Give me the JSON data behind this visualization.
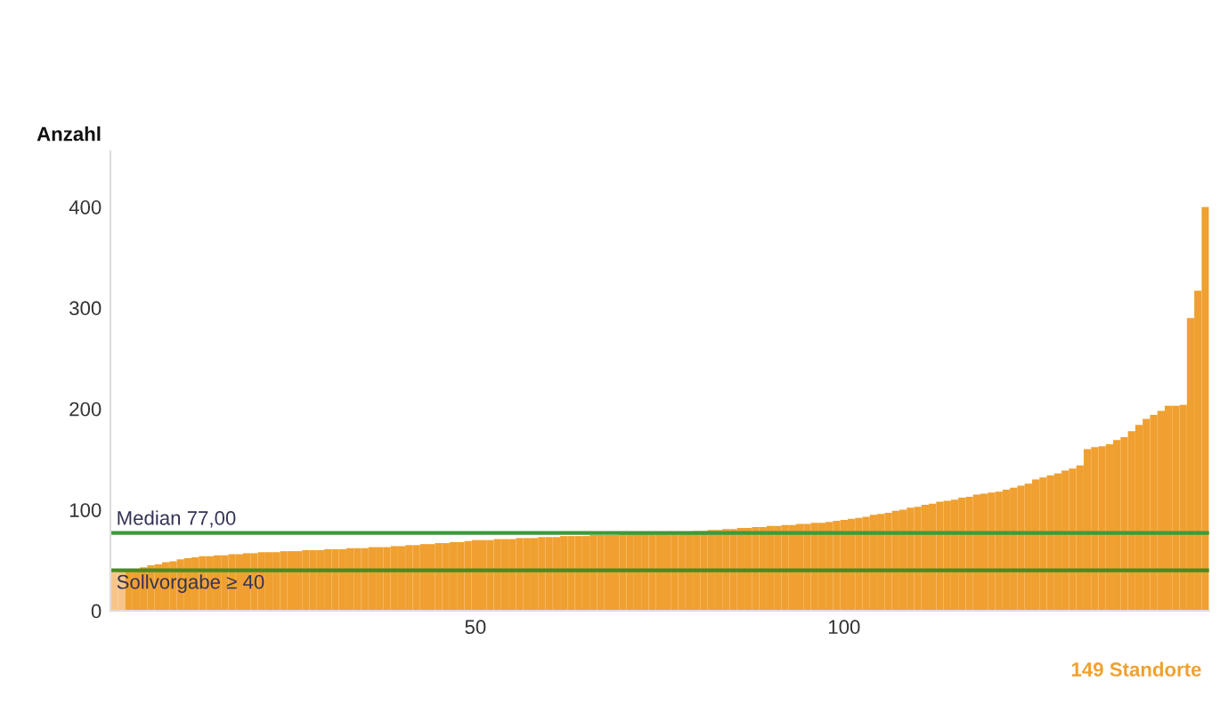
{
  "chart_data": {
    "type": "bar",
    "xlabel": "149 Standorte",
    "ylabel": "Anzahl",
    "x": [
      1,
      2,
      3,
      4,
      5,
      6,
      7,
      8,
      9,
      10,
      11,
      12,
      13,
      14,
      15,
      16,
      17,
      18,
      19,
      20,
      21,
      22,
      23,
      24,
      25,
      26,
      27,
      28,
      29,
      30,
      31,
      32,
      33,
      34,
      35,
      36,
      37,
      38,
      39,
      40,
      41,
      42,
      43,
      44,
      45,
      46,
      47,
      48,
      49,
      50,
      51,
      52,
      53,
      54,
      55,
      56,
      57,
      58,
      59,
      60,
      61,
      62,
      63,
      64,
      65,
      66,
      67,
      68,
      69,
      70,
      71,
      72,
      73,
      74,
      75,
      76,
      77,
      78,
      79,
      80,
      81,
      82,
      83,
      84,
      85,
      86,
      87,
      88,
      89,
      90,
      91,
      92,
      93,
      94,
      95,
      96,
      97,
      98,
      99,
      100,
      101,
      102,
      103,
      104,
      105,
      106,
      107,
      108,
      109,
      110,
      111,
      112,
      113,
      114,
      115,
      116,
      117,
      118,
      119,
      120,
      121,
      122,
      123,
      124,
      125,
      126,
      127,
      128,
      129,
      130,
      131,
      132,
      133,
      134,
      135,
      136,
      137,
      138,
      139,
      140,
      141,
      142,
      143,
      144,
      145,
      146,
      147,
      148,
      149
    ],
    "values": [
      38,
      39,
      40,
      41,
      43,
      45,
      46,
      48,
      49,
      51,
      52,
      53,
      54,
      54,
      55,
      55,
      56,
      56,
      57,
      57,
      58,
      58,
      58,
      59,
      59,
      59,
      60,
      60,
      60,
      61,
      61,
      61,
      62,
      62,
      62,
      63,
      63,
      63,
      64,
      64,
      65,
      65,
      66,
      66,
      67,
      67,
      68,
      68,
      69,
      70,
      70,
      70,
      71,
      71,
      71,
      72,
      72,
      72,
      73,
      73,
      73,
      74,
      74,
      74,
      74,
      75,
      75,
      75,
      75,
      76,
      76,
      76,
      76,
      77,
      77,
      77,
      78,
      78,
      78,
      79,
      79,
      80,
      80,
      81,
      81,
      82,
      82,
      83,
      83,
      84,
      84,
      85,
      85,
      86,
      86,
      87,
      87,
      88,
      89,
      90,
      91,
      92,
      93,
      95,
      96,
      97,
      99,
      100,
      102,
      103,
      105,
      106,
      108,
      109,
      110,
      112,
      113,
      115,
      116,
      117,
      118,
      120,
      122,
      124,
      126,
      130,
      132,
      134,
      136,
      139,
      141,
      144,
      160,
      162,
      163,
      165,
      169,
      172,
      178,
      184,
      190,
      194,
      198,
      203,
      203,
      204,
      290,
      317,
      400
    ],
    "colors": [
      "#f7c58a",
      "#f7c58a",
      "#f0a030",
      "#f0a030",
      "#f0a030",
      "#f0a030",
      "#f0a030",
      "#f0a030",
      "#f0a030",
      "#f0a030",
      "#f0a030",
      "#f0a030",
      "#f0a030",
      "#f0a030",
      "#f0a030",
      "#f0a030",
      "#f0a030",
      "#f0a030",
      "#f0a030",
      "#f0a030",
      "#f0a030",
      "#f0a030",
      "#f0a030",
      "#f0a030",
      "#f0a030",
      "#f0a030",
      "#f0a030",
      "#f0a030",
      "#f0a030",
      "#f0a030",
      "#f0a030",
      "#f0a030",
      "#f0a030",
      "#f0a030",
      "#f0a030",
      "#f0a030",
      "#f0a030",
      "#f0a030",
      "#f0a030",
      "#f0a030",
      "#f0a030",
      "#f0a030",
      "#f0a030",
      "#f0a030",
      "#f0a030",
      "#f0a030",
      "#f0a030",
      "#f0a030",
      "#f0a030",
      "#f0a030",
      "#f0a030",
      "#f0a030",
      "#f0a030",
      "#f0a030",
      "#f0a030",
      "#f0a030",
      "#f0a030",
      "#f0a030",
      "#f0a030",
      "#f0a030",
      "#f0a030",
      "#f0a030",
      "#f0a030",
      "#f0a030",
      "#f0a030",
      "#f0a030",
      "#f0a030",
      "#f0a030",
      "#f0a030",
      "#f0a030",
      "#f0a030",
      "#f0a030",
      "#f0a030",
      "#f0a030",
      "#f0a030",
      "#f0a030",
      "#f0a030",
      "#f0a030",
      "#f0a030",
      "#f0a030",
      "#f0a030",
      "#f0a030",
      "#f0a030",
      "#f0a030",
      "#f0a030",
      "#f0a030",
      "#f0a030",
      "#f0a030",
      "#f0a030",
      "#f0a030",
      "#f0a030",
      "#f0a030",
      "#f0a030",
      "#f0a030",
      "#f0a030",
      "#f0a030",
      "#f0a030",
      "#f0a030",
      "#f0a030",
      "#f0a030",
      "#f0a030",
      "#f0a030",
      "#f0a030",
      "#f0a030",
      "#f0a030",
      "#f0a030",
      "#f0a030",
      "#f0a030",
      "#f0a030",
      "#f0a030",
      "#f0a030",
      "#f0a030",
      "#f0a030",
      "#f0a030",
      "#f0a030",
      "#f0a030",
      "#f0a030",
      "#f0a030",
      "#f0a030",
      "#f0a030",
      "#f0a030",
      "#f0a030",
      "#f0a030",
      "#f0a030",
      "#f0a030",
      "#f0a030",
      "#f0a030",
      "#f0a030",
      "#f0a030",
      "#f0a030",
      "#f0a030",
      "#f0a030",
      "#f0a030",
      "#f0a030",
      "#f0a030",
      "#f0a030",
      "#f0a030",
      "#f0a030",
      "#f0a030",
      "#f0a030",
      "#f0a030",
      "#f0a030",
      "#f0a030",
      "#f0a030",
      "#f0a030",
      "#f0a030",
      "#f0a030",
      "#f0a030",
      "#f0a030"
    ],
    "xlim": [
      0.5,
      149.5
    ],
    "xticks": [
      50,
      100
    ],
    "ylim": [
      0,
      455
    ],
    "yticks": [
      0,
      100,
      200,
      300,
      400
    ],
    "grid": false,
    "ref_lines": [
      {
        "axis": "y",
        "value": 77,
        "label": "Median 77,00",
        "color": "#3c9a3c"
      },
      {
        "axis": "y",
        "value": 40,
        "label": "Sollvorgabe ≥ 40",
        "color": "#4a8a1c"
      }
    ]
  }
}
